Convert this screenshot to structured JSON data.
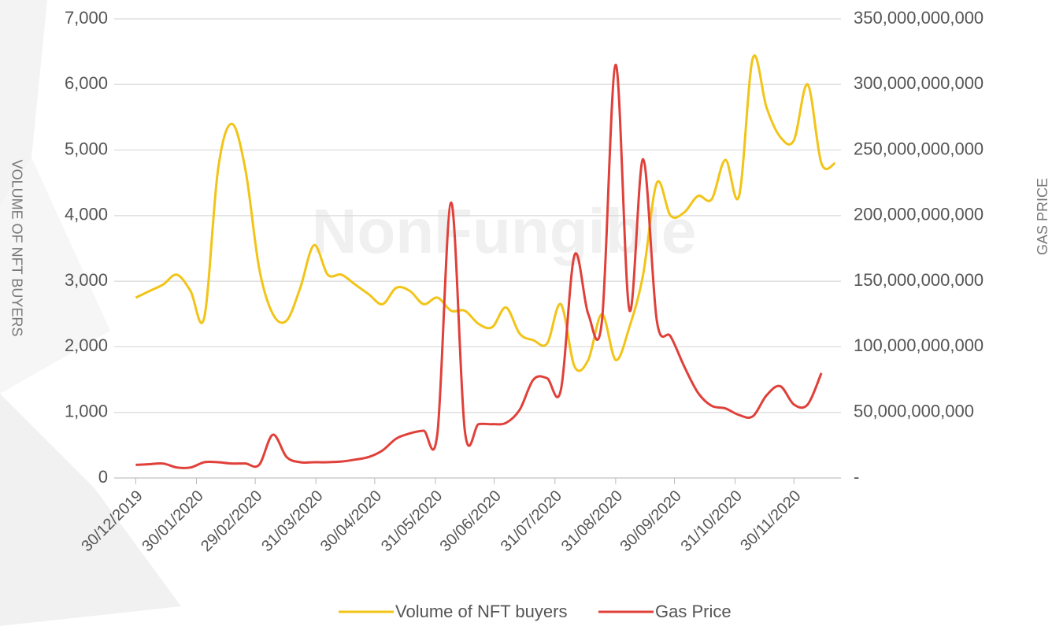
{
  "chart_data": {
    "type": "line",
    "watermark": "NonFungible",
    "y_label": "VOLUME OF NFT BUYERS",
    "y2_label": "GAS PRICE",
    "x": [
      "30/12/2019",
      "06/01/2020",
      "13/01/2020",
      "20/01/2020",
      "27/01/2020",
      "03/02/2020",
      "10/02/2020",
      "17/02/2020",
      "24/02/2020",
      "02/03/2020",
      "09/03/2020",
      "16/03/2020",
      "23/03/2020",
      "30/03/2020",
      "06/04/2020",
      "13/04/2020",
      "20/04/2020",
      "27/04/2020",
      "04/05/2020",
      "11/05/2020",
      "18/05/2020",
      "25/05/2020",
      "01/06/2020",
      "08/06/2020",
      "15/06/2020",
      "22/06/2020",
      "29/06/2020",
      "06/07/2020",
      "13/07/2020",
      "20/07/2020",
      "27/07/2020",
      "03/08/2020",
      "10/08/2020",
      "17/08/2020",
      "24/08/2020",
      "31/08/2020",
      "07/09/2020",
      "14/09/2020",
      "21/09/2020",
      "28/09/2020",
      "05/10/2020",
      "12/10/2020",
      "19/10/2020",
      "26/10/2020",
      "02/11/2020",
      "09/11/2020",
      "16/11/2020",
      "23/11/2020",
      "30/11/2020",
      "07/12/2020",
      "14/12/2020",
      "21/12/2020"
    ],
    "xlim": [
      "19/12/2019",
      "24/12/2020"
    ],
    "xticks": [
      "30/12/2019",
      "30/01/2020",
      "29/02/2020",
      "31/03/2020",
      "30/04/2020",
      "31/05/2020",
      "30/06/2020",
      "31/07/2020",
      "31/08/2020",
      "30/09/2020",
      "31/10/2020",
      "30/11/2020"
    ],
    "ylim": [
      0,
      7000
    ],
    "yticks": [
      0,
      {
        "value": 1000,
        "label": "1,000"
      },
      {
        "value": 2000,
        "label": "2,000"
      },
      {
        "value": 3000,
        "label": "3,000"
      },
      {
        "value": 4000,
        "label": "4,000"
      },
      {
        "value": 5000,
        "label": "5,000"
      },
      {
        "value": 6000,
        "label": "6,000"
      },
      {
        "value": 7000,
        "label": "7,000"
      }
    ],
    "y2lim": [
      0,
      350000000000
    ],
    "y2ticks": [
      {
        "value": 0,
        "label": "-"
      },
      {
        "value": 50000000000,
        "label": "50,000,000,000"
      },
      {
        "value": 100000000000,
        "label": "100,000,000,000"
      },
      {
        "value": 150000000000,
        "label": "150,000,000,000"
      },
      {
        "value": 200000000000,
        "label": "200,000,000,000"
      },
      {
        "value": 250000000000,
        "label": "250,000,000,000"
      },
      {
        "value": 300000000000,
        "label": "300,000,000,000"
      },
      {
        "value": 350000000000,
        "label": "350,000,000,000"
      }
    ],
    "grid": true,
    "smooth": true,
    "legend": "bottom",
    "series": [
      {
        "name": "Volume of NFT buyers",
        "color": "#f2c418",
        "values": [
          2750,
          2850,
          2950,
          3100,
          2850,
          2450,
          4700,
          5400,
          4700,
          3200,
          2500,
          2400,
          2900,
          3550,
          3100,
          3100,
          2950,
          2800,
          2650,
          2900,
          2850,
          2650,
          2750,
          2550,
          2550,
          2350,
          2300,
          2600,
          2200,
          2100,
          2050,
          2650,
          1700,
          1800,
          2500,
          1800,
          2300,
          3100,
          4500,
          4000,
          4050,
          4300,
          4250,
          4850,
          4300,
          6400,
          5650,
          5200,
          5150,
          6000,
          4800,
          4800
        ]
      },
      {
        "name": "Gas Price",
        "color": "#e0403a",
        "axis": "y2",
        "values": [
          10000000000,
          10500000000,
          11000000000,
          8000000000,
          8000000000,
          12000000000,
          12000000000,
          11000000000,
          11000000000,
          10000000000,
          33000000000,
          16000000000,
          12000000000,
          12000000000,
          12000000000,
          12500000000,
          14000000000,
          16000000000,
          21000000000,
          30000000000,
          34000000000,
          36000000000,
          34000000000,
          210000000000,
          36000000000,
          41000000000,
          41000000000,
          42000000000,
          52000000000,
          75000000000,
          76000000000,
          67000000000,
          170000000000,
          125000000000,
          120000000000,
          315000000000,
          128000000000,
          243000000000,
          120000000000,
          108000000000,
          85000000000,
          65000000000,
          55000000000,
          53000000000,
          48000000000,
          47000000000,
          63000000000,
          70000000000,
          56000000000,
          56000000000,
          80000000000,
          null
        ]
      }
    ]
  }
}
